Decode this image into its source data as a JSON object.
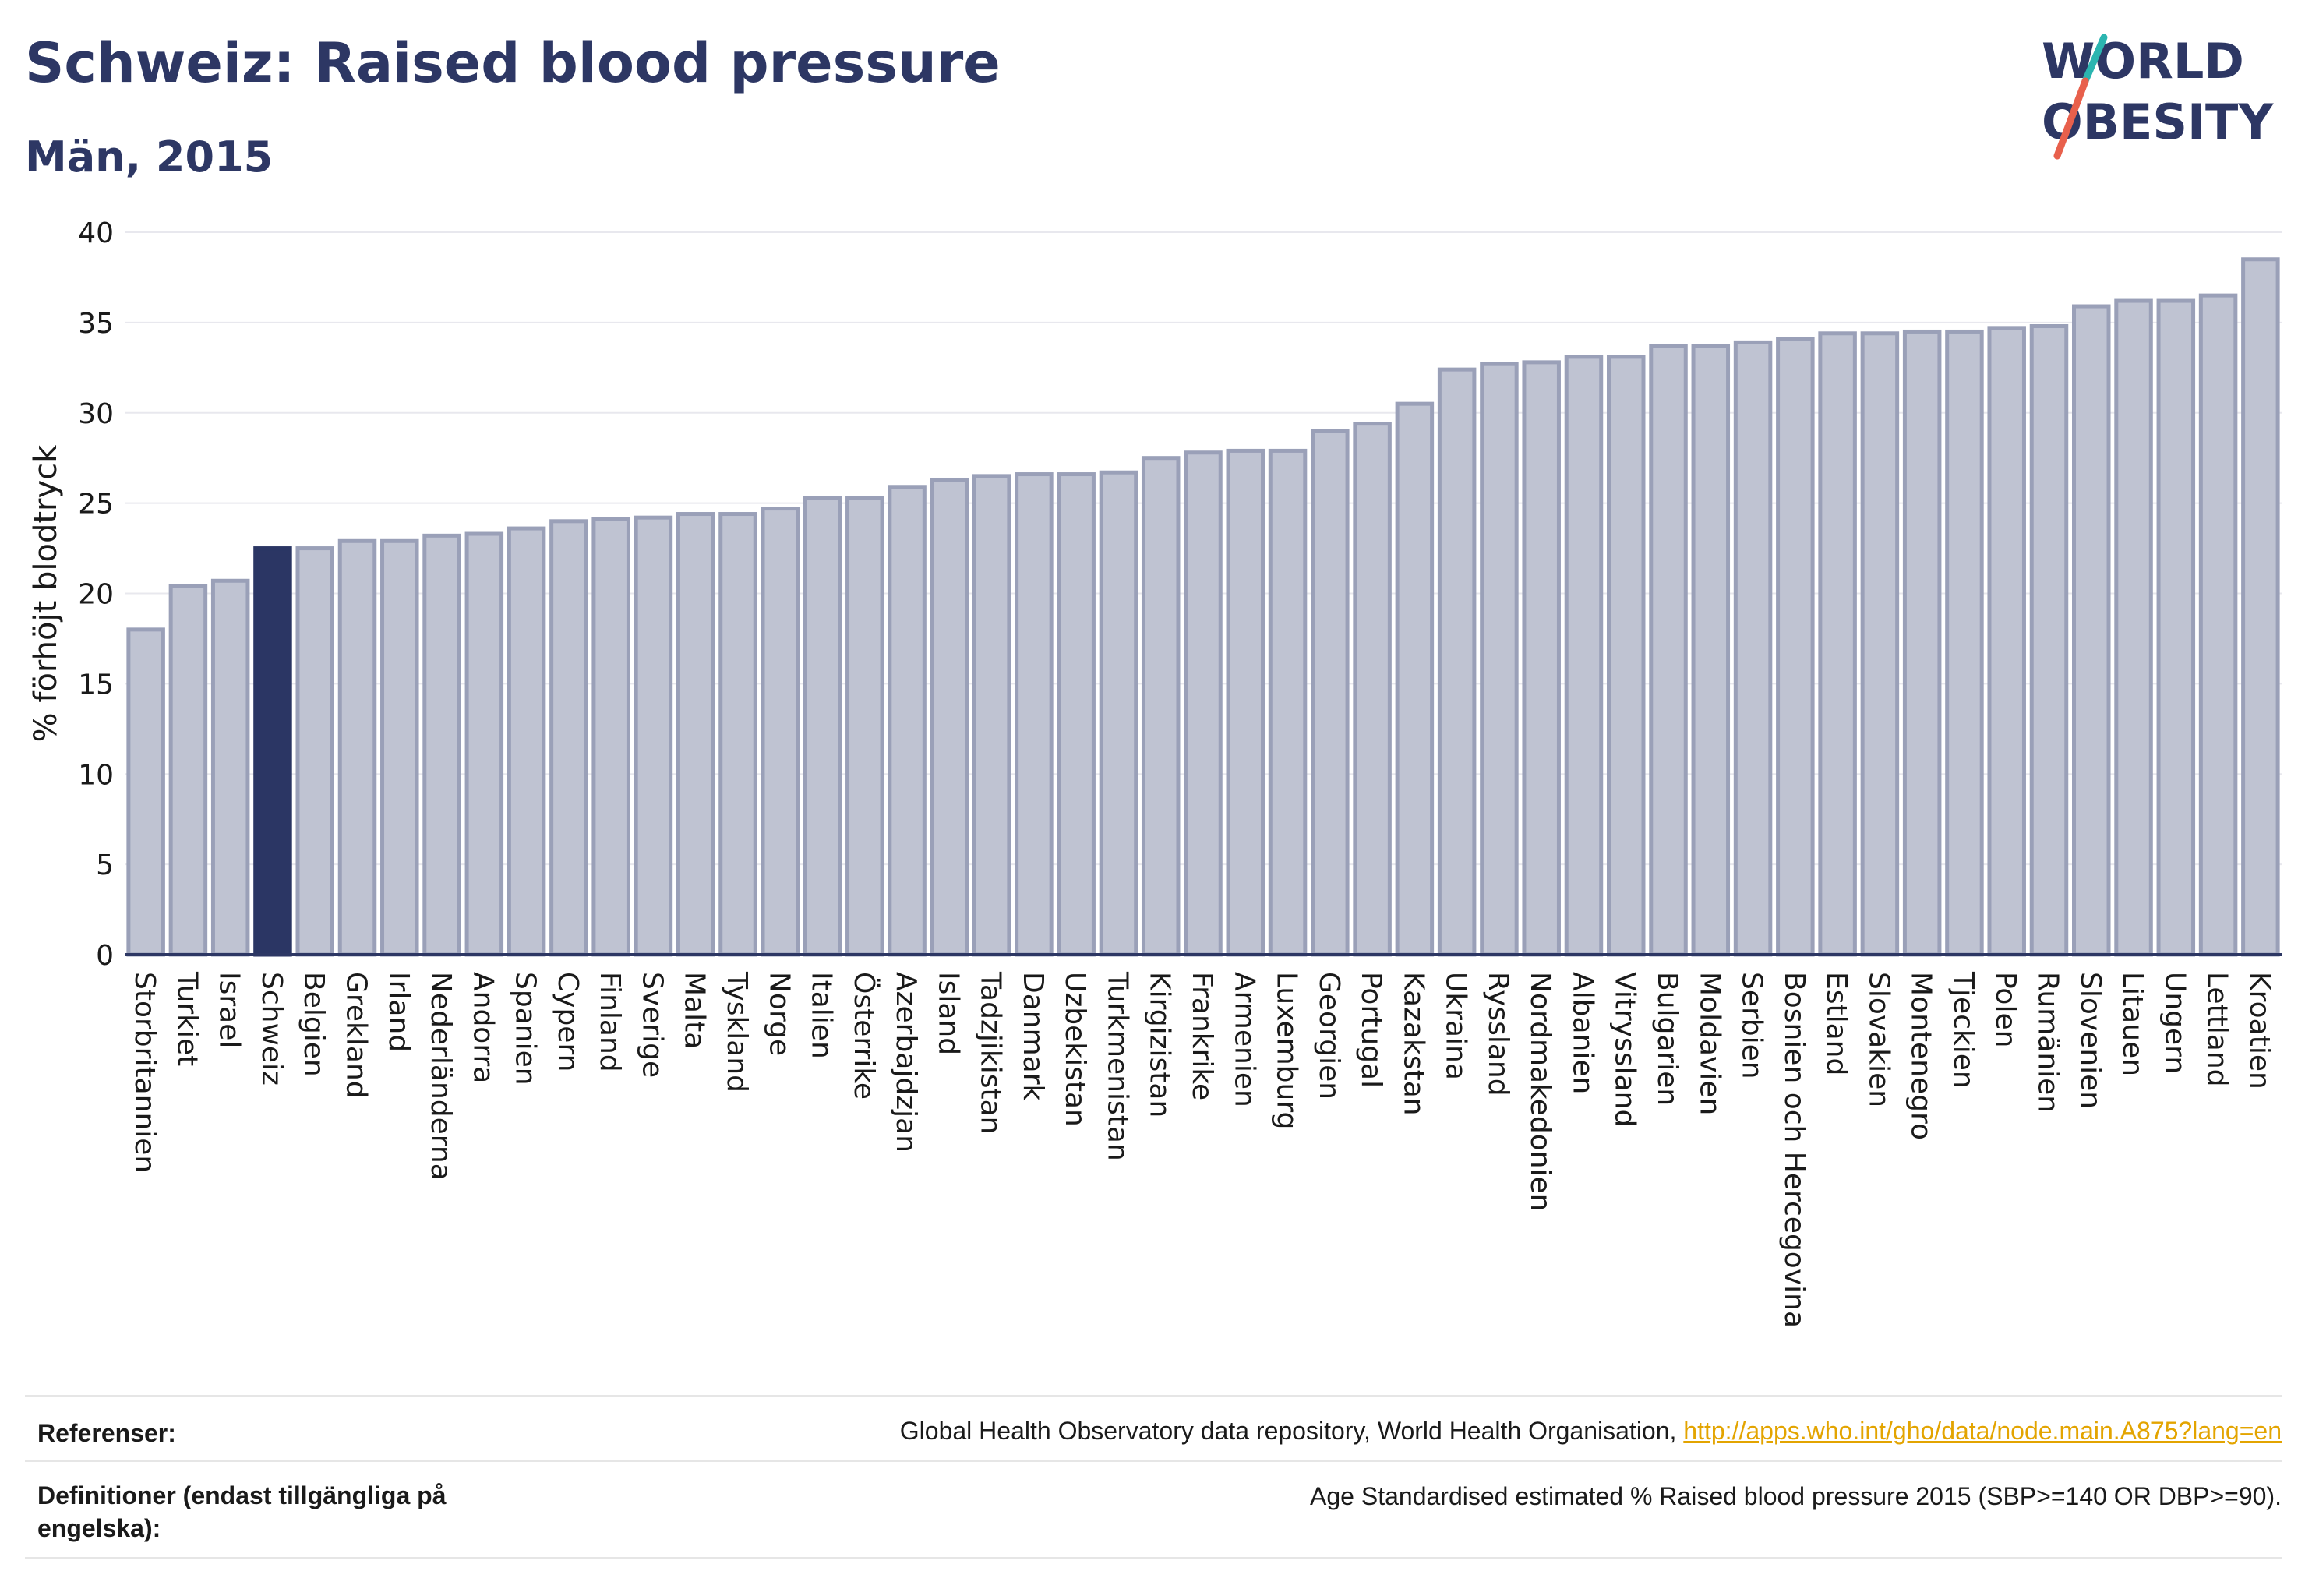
{
  "header": {
    "title": "Schweiz: Raised blood pressure",
    "subtitle": "Män, 2015"
  },
  "logo": {
    "line1": "WORLD",
    "line2": "OBESITY"
  },
  "colors": {
    "highlight_bar": "#2b3664",
    "other_bar": "#bfc3d2",
    "bar_outline": "#9aa0b8",
    "title": "#2d3764",
    "link": "#e3a400",
    "logo_slash_teal": "#2bb5b0",
    "logo_slash_red": "#e8604c"
  },
  "chart_data": {
    "type": "bar",
    "ylabel": "% förhöjt blodtryck",
    "xlabel": "",
    "ylim": [
      0,
      40
    ],
    "yticks": [
      0,
      5,
      10,
      15,
      20,
      25,
      30,
      35,
      40
    ],
    "grid": true,
    "highlight": "Schweiz",
    "categories": [
      "Storbritannien",
      "Turkiet",
      "Israel",
      "Schweiz",
      "Belgien",
      "Grekland",
      "Irland",
      "Nederländerna",
      "Andorra",
      "Spanien",
      "Cypern",
      "Finland",
      "Sverige",
      "Malta",
      "Tyskland",
      "Norge",
      "Italien",
      "Österrike",
      "Azerbajdzjan",
      "Island",
      "Tadzjikistan",
      "Danmark",
      "Uzbekistan",
      "Turkmenistan",
      "Kirgizistan",
      "Frankrike",
      "Armenien",
      "Luxemburg",
      "Georgien",
      "Portugal",
      "Kazakstan",
      "Ukraina",
      "Ryssland",
      "Nordmakedonien",
      "Albanien",
      "Vitryssland",
      "Bulgarien",
      "Moldavien",
      "Serbien",
      "Bosnien och Hercegovina",
      "Estland",
      "Slovakien",
      "Montenegro",
      "Tjeckien",
      "Polen",
      "Rumänien",
      "Slovenien",
      "Litauen",
      "Ungern",
      "Lettland",
      "Kroatien"
    ],
    "values": [
      18.0,
      20.4,
      20.7,
      22.5,
      22.5,
      22.9,
      22.9,
      23.2,
      23.3,
      23.6,
      24.0,
      24.1,
      24.2,
      24.4,
      24.4,
      24.7,
      25.3,
      25.3,
      25.9,
      26.3,
      26.5,
      26.6,
      26.6,
      26.7,
      27.5,
      27.8,
      27.9,
      27.9,
      29.0,
      29.4,
      30.5,
      32.4,
      32.7,
      32.8,
      33.1,
      33.1,
      33.7,
      33.7,
      33.9,
      34.1,
      34.4,
      34.4,
      34.5,
      34.5,
      34.7,
      34.8,
      35.9,
      36.2,
      36.2,
      36.5,
      38.5
    ]
  },
  "footer": {
    "ref_label": "Referenser:",
    "ref_text": "Global Health Observatory data repository, World Health Organisation, ",
    "ref_link": "http://apps.who.int/gho/data/node.main.A875?lang=en",
    "def_label": "Definitioner (endast tillgängliga på engelska):",
    "def_text": "Age Standardised estimated % Raised blood pressure 2015 (SBP>=140 OR DBP>=90)."
  }
}
